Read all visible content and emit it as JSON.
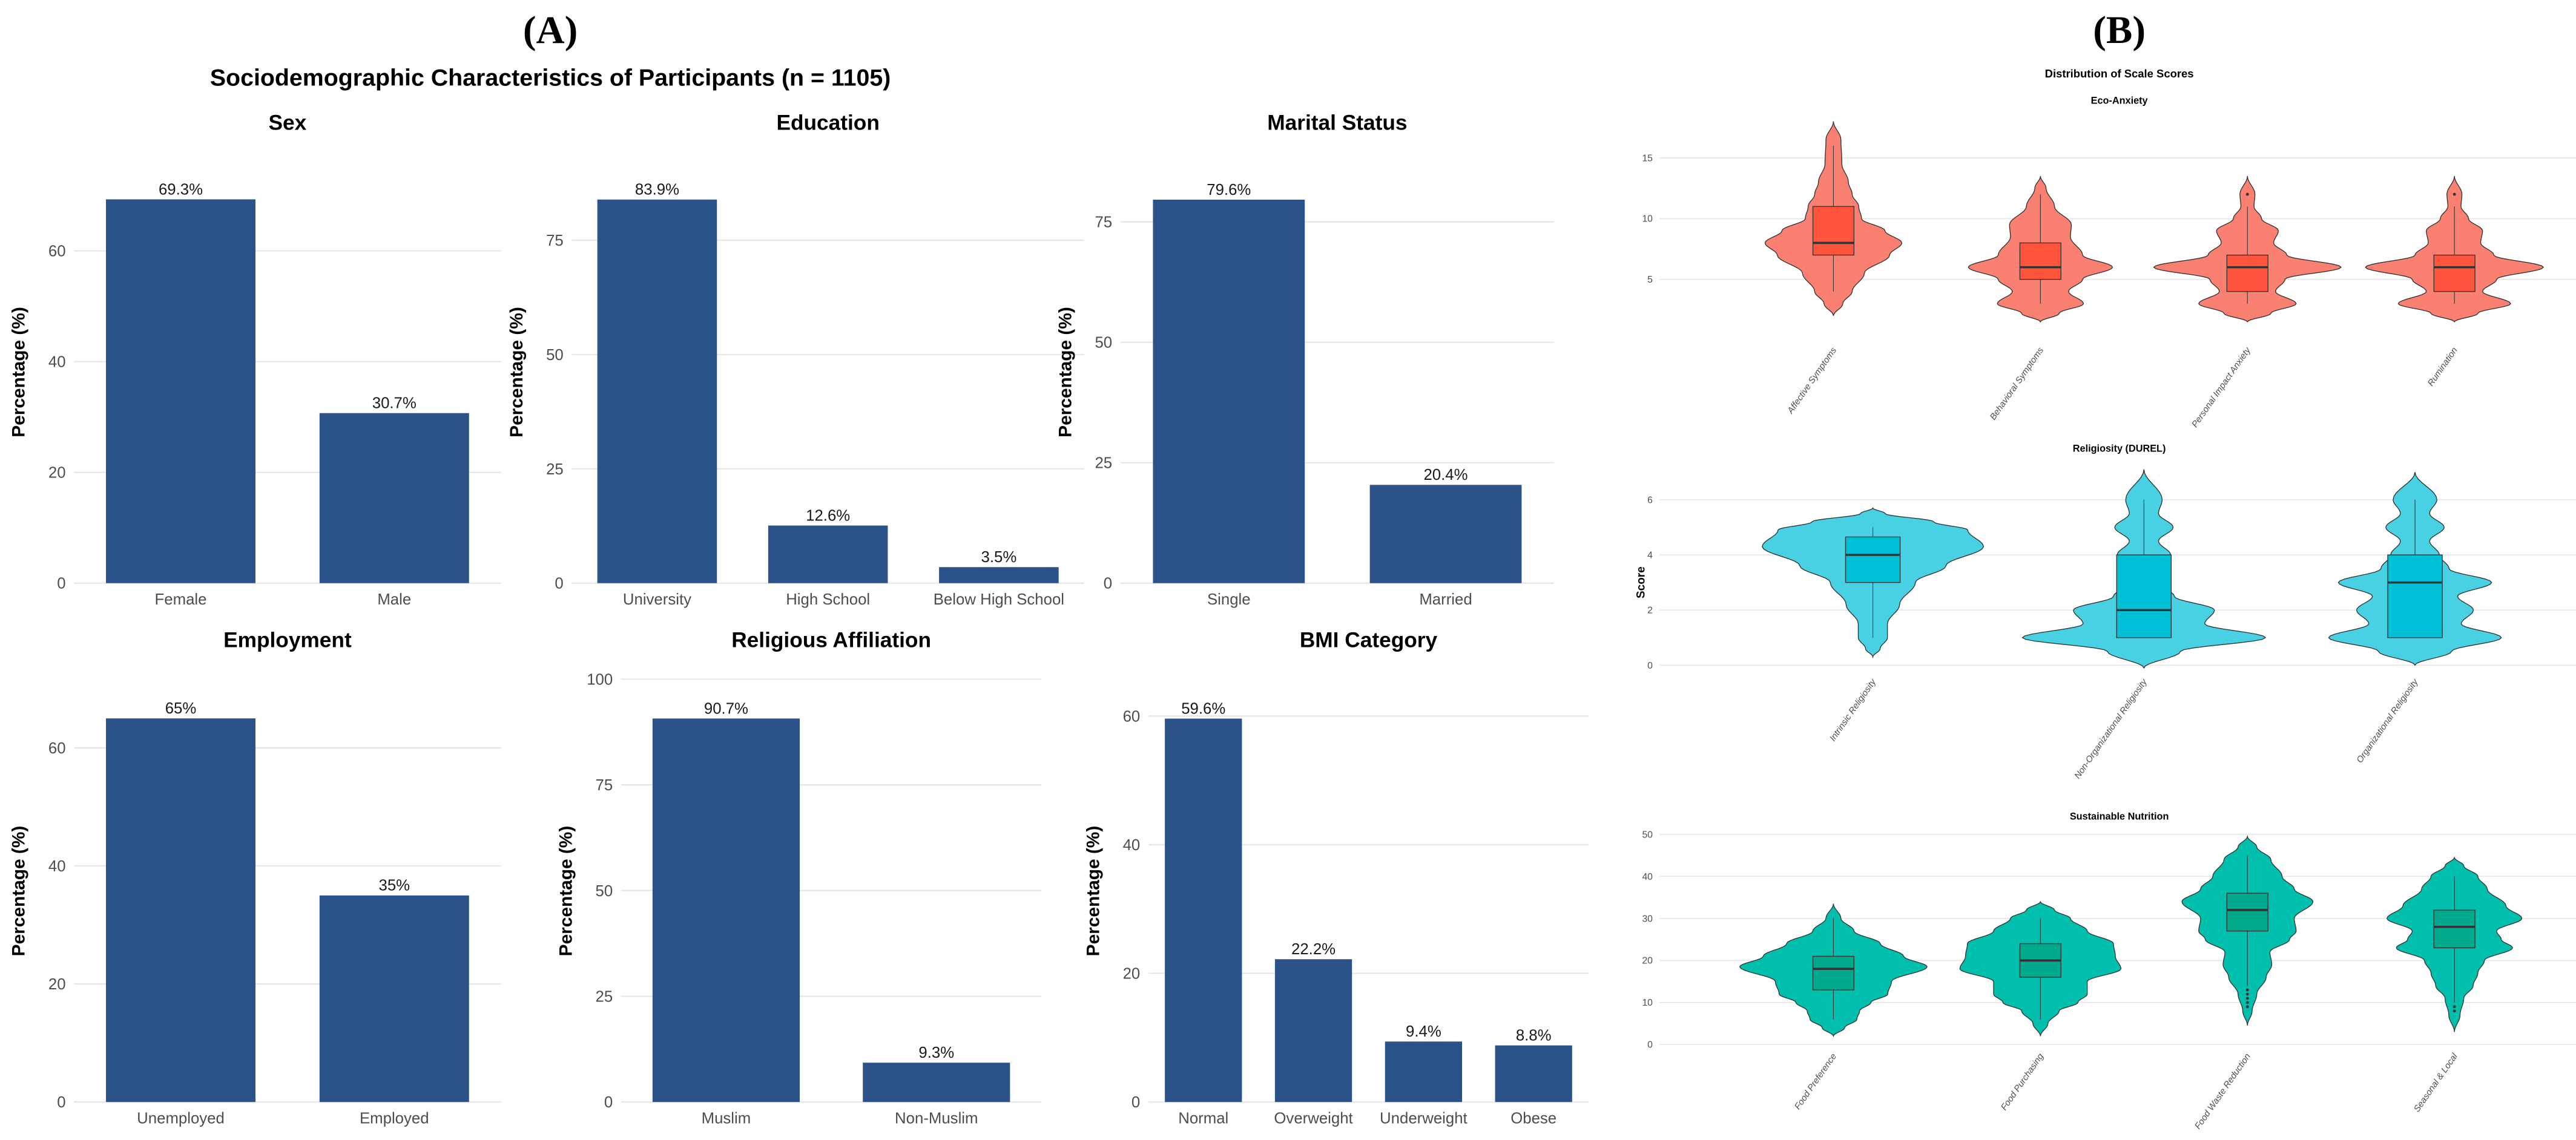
{
  "panel_a_letter": "(A)",
  "panel_b_letter": "(B)",
  "colors": {
    "bar": "#2b5289",
    "eco_violin": "#fa8072",
    "eco_box": "#ff553c",
    "rel_violin": "#48d1e2",
    "rel_box": "#00c0d8",
    "nut_violin": "#00bfad",
    "nut_box": "#00a88c",
    "grid": "#e6e6e6"
  },
  "chart_data": [
    {
      "type": "bar",
      "title": "Sociodemographic Characteristics of Participants (n = 1105)",
      "ylabel": "Percentage (%)",
      "panels": [
        {
          "title": "Sex",
          "categories": [
            "Female",
            "Male"
          ],
          "values": [
            69.3,
            30.7
          ],
          "labels": [
            "69.3%",
            "30.7%"
          ],
          "yticks": [
            0,
            20,
            40,
            60
          ],
          "ylim": [
            0,
            76.2
          ]
        },
        {
          "title": "Education",
          "categories": [
            "University",
            "High School",
            "Below High School"
          ],
          "values": [
            83.9,
            12.6,
            3.5
          ],
          "labels": [
            "83.9%",
            "12.6%",
            "3.5%"
          ],
          "yticks": [
            0,
            25,
            50,
            75
          ],
          "ylim": [
            0,
            92.3
          ]
        },
        {
          "title": "Marital Status",
          "categories": [
            "Single",
            "Married"
          ],
          "values": [
            79.6,
            20.4
          ],
          "labels": [
            "79.6%",
            "20.4%"
          ],
          "yticks": [
            0,
            25,
            50,
            75
          ],
          "ylim": [
            0,
            87.6
          ]
        },
        {
          "title": "Employment",
          "categories": [
            "Unemployed",
            "Employed"
          ],
          "values": [
            65,
            35
          ],
          "labels": [
            "65%",
            "35%"
          ],
          "yticks": [
            0,
            20,
            40,
            60
          ],
          "ylim": [
            0,
            71.5
          ]
        },
        {
          "title": "Religious Affiliation",
          "categories": [
            "Muslim",
            "Non-Muslim"
          ],
          "values": [
            90.7,
            9.3
          ],
          "labels": [
            "90.7%",
            "9.3%"
          ],
          "yticks": [
            0,
            25,
            50,
            75,
            100
          ],
          "ylim": [
            0,
            99.8
          ]
        },
        {
          "title": "BMI Category",
          "categories": [
            "Normal",
            "Overweight",
            "Underweight",
            "Obese"
          ],
          "values": [
            59.6,
            22.2,
            9.4,
            8.8
          ],
          "labels": [
            "59.6%",
            "22.2%",
            "9.4%",
            "8.8%"
          ],
          "yticks": [
            0,
            20,
            40,
            60
          ],
          "ylim": [
            0,
            65.6
          ]
        }
      ]
    },
    {
      "type": "violin",
      "title": "Distribution of Scale Scores",
      "ylabel": "Score",
      "panels": [
        {
          "title": "Eco-Anxiety",
          "yticks": [
            5,
            10,
            15
          ],
          "colorKey": "eco",
          "groups": [
            {
              "name": "Affective Symptoms",
              "box": {
                "lower": 4,
                "q1": 7,
                "median": 8,
                "q3": 11,
                "upper": 16
              },
              "outliers": [],
              "density": [
                [
                  2,
                  0
                ],
                [
                  3,
                  0.1
                ],
                [
                  4,
                  0.2
                ],
                [
                  5.5,
                  0.33
                ],
                [
                  7,
                  0.6
                ],
                [
                  8,
                  0.73
                ],
                [
                  9,
                  0.55
                ],
                [
                  10,
                  0.3
                ],
                [
                  11,
                  0.27
                ],
                [
                  12,
                  0.2
                ],
                [
                  13,
                  0.16
                ],
                [
                  14.5,
                  0.09
                ],
                [
                  16.5,
                  0.08
                ],
                [
                  18,
                  0
                ]
              ]
            },
            {
              "name": "Behavioral Symptoms",
              "box": {
                "lower": 3,
                "q1": 5,
                "median": 6,
                "q3": 8,
                "upper": 12
              },
              "outliers": [],
              "density": [
                [
                  1.5,
                  0
                ],
                [
                  2.2,
                  0.2
                ],
                [
                  3,
                  0.46
                ],
                [
                  4,
                  0.3
                ],
                [
                  5,
                  0.45
                ],
                [
                  6,
                  0.77
                ],
                [
                  7,
                  0.45
                ],
                [
                  8.5,
                  0.32
                ],
                [
                  9.5,
                  0.33
                ],
                [
                  11,
                  0.15
                ],
                [
                  12.5,
                  0.06
                ],
                [
                  13.5,
                  0
                ]
              ]
            },
            {
              "name": "Personal Impact Anxiety",
              "box": {
                "lower": 3,
                "q1": 4,
                "median": 6,
                "q3": 7,
                "upper": 11
              },
              "outliers": [
                12
              ],
              "density": [
                [
                  1.5,
                  0
                ],
                [
                  2.2,
                  0.25
                ],
                [
                  3,
                  0.52
                ],
                [
                  4,
                  0.3
                ],
                [
                  5,
                  0.4
                ],
                [
                  6,
                  1
                ],
                [
                  7,
                  0.42
                ],
                [
                  8,
                  0.28
                ],
                [
                  9,
                  0.33
                ],
                [
                  10,
                  0.15
                ],
                [
                  11,
                  0.07
                ],
                [
                  12,
                  0.08
                ],
                [
                  13.5,
                  0
                ]
              ]
            },
            {
              "name": "Rumination",
              "box": {
                "lower": 3,
                "q1": 4,
                "median": 6,
                "q3": 7,
                "upper": 11
              },
              "outliers": [
                12
              ],
              "density": [
                [
                  1.5,
                  0
                ],
                [
                  2.2,
                  0.25
                ],
                [
                  3,
                  0.6
                ],
                [
                  4,
                  0.3
                ],
                [
                  5,
                  0.45
                ],
                [
                  6,
                  0.95
                ],
                [
                  7,
                  0.42
                ],
                [
                  8,
                  0.28
                ],
                [
                  9,
                  0.3
                ],
                [
                  10,
                  0.15
                ],
                [
                  11,
                  0.07
                ],
                [
                  12,
                  0.08
                ],
                [
                  13.5,
                  0
                ]
              ]
            }
          ]
        },
        {
          "title": "Religiosity (DUREL)",
          "yticks": [
            0,
            2,
            4,
            6
          ],
          "colorKey": "rel",
          "groups": [
            {
              "name": "Intrinsic Religiosity",
              "box": {
                "lower": 1,
                "q1": 3,
                "median": 4,
                "q3": 4.65,
                "upper": 5
              },
              "outliers": [],
              "density": [
                [
                  0.3,
                  0
                ],
                [
                  0.6,
                  0.06
                ],
                [
                  1,
                  0.12
                ],
                [
                  1.5,
                  0.12
                ],
                [
                  2.2,
                  0.22
                ],
                [
                  3,
                  0.35
                ],
                [
                  3.6,
                  0.6
                ],
                [
                  4.3,
                  0.91
                ],
                [
                  4.9,
                  0.78
                ],
                [
                  5.2,
                  0.5
                ],
                [
                  5.5,
                  0.1
                ],
                [
                  5.7,
                  0
                ]
              ]
            },
            {
              "name": "Non-Organizational Religiosity",
              "box": {
                "lower": 1,
                "q1": 1,
                "median": 2,
                "q3": 4,
                "upper": 6
              },
              "outliers": [],
              "density": [
                [
                  -0.1,
                  0
                ],
                [
                  0.5,
                  0.3
                ],
                [
                  1,
                  1
                ],
                [
                  1.5,
                  0.5
                ],
                [
                  2,
                  0.58
                ],
                [
                  2.5,
                  0.25
                ],
                [
                  3,
                  0.1
                ],
                [
                  3.5,
                  0.1
                ],
                [
                  4,
                  0.22
                ],
                [
                  4.5,
                  0.12
                ],
                [
                  5,
                  0.24
                ],
                [
                  5.5,
                  0.12
                ],
                [
                  6,
                  0.15
                ],
                [
                  7.1,
                  0
                ]
              ]
            },
            {
              "name": "Organizational Religiosity",
              "box": {
                "lower": 1,
                "q1": 1,
                "median": 3,
                "q3": 4,
                "upper": 6
              },
              "outliers": [],
              "density": [
                [
                  0,
                  0
                ],
                [
                  0.5,
                  0.3
                ],
                [
                  1,
                  0.71
                ],
                [
                  1.5,
                  0.38
                ],
                [
                  2,
                  0.48
                ],
                [
                  2.5,
                  0.35
                ],
                [
                  3,
                  0.63
                ],
                [
                  3.5,
                  0.28
                ],
                [
                  4,
                  0.2
                ],
                [
                  4.5,
                  0.12
                ],
                [
                  5,
                  0.24
                ],
                [
                  5.5,
                  0.12
                ],
                [
                  6,
                  0.18
                ],
                [
                  7,
                  0
                ]
              ]
            }
          ]
        },
        {
          "title": "Sustainable Nutrition",
          "yticks": [
            0,
            10,
            20,
            30,
            40,
            50
          ],
          "colorKey": "nut",
          "groups": [
            {
              "name": "Food Preference",
              "box": {
                "lower": 6,
                "q1": 13,
                "median": 18,
                "q3": 21,
                "upper": 30
              },
              "outliers": [],
              "density": [
                [
                  2,
                  0
                ],
                [
                  4,
                  0.12
                ],
                [
                  6,
                  0.25
                ],
                [
                  8,
                  0.28
                ],
                [
                  10,
                  0.4
                ],
                [
                  12,
                  0.58
                ],
                [
                  15,
                  0.62
                ],
                [
                  18.5,
                  1
                ],
                [
                  21,
                  0.75
                ],
                [
                  24,
                  0.5
                ],
                [
                  27,
                  0.22
                ],
                [
                  30,
                  0.08
                ],
                [
                  33.5,
                  0
                ]
              ]
            },
            {
              "name": "Food Purchasing",
              "box": {
                "lower": 6,
                "q1": 16,
                "median": 20,
                "q3": 24,
                "upper": 30
              },
              "outliers": [],
              "density": [
                [
                  2,
                  0
                ],
                [
                  5,
                  0.08
                ],
                [
                  8,
                  0.2
                ],
                [
                  10,
                  0.4
                ],
                [
                  12,
                  0.5
                ],
                [
                  15,
                  0.5
                ],
                [
                  18,
                  0.86
                ],
                [
                  21,
                  0.8
                ],
                [
                  24,
                  0.78
                ],
                [
                  27,
                  0.5
                ],
                [
                  30,
                  0.32
                ],
                [
                  32,
                  0.15
                ],
                [
                  34,
                  0
                ]
              ]
            },
            {
              "name": "Food Waste Reduction",
              "box": {
                "lower": 14,
                "q1": 27,
                "median": 32,
                "q3": 36,
                "upper": 45
              },
              "outliers": [
                9,
                10,
                11,
                12,
                13
              ],
              "density": [
                [
                  4.5,
                  0
                ],
                [
                  8,
                  0.05
                ],
                [
                  12,
                  0.1
                ],
                [
                  16,
                  0.2
                ],
                [
                  19,
                  0.26
                ],
                [
                  22,
                  0.24
                ],
                [
                  25,
                  0.45
                ],
                [
                  27,
                  0.52
                ],
                [
                  30,
                  0.5
                ],
                [
                  34,
                  0.7
                ],
                [
                  37,
                  0.5
                ],
                [
                  40,
                  0.37
                ],
                [
                  44,
                  0.25
                ],
                [
                  47,
                  0.1
                ],
                [
                  49.5,
                  0
                ]
              ]
            },
            {
              "name": "Seasonal & Local",
              "box": {
                "lower": 10,
                "q1": 23,
                "median": 28,
                "q3": 32,
                "upper": 40
              },
              "outliers": [
                8,
                9
              ],
              "density": [
                [
                  3,
                  0
                ],
                [
                  7,
                  0.06
                ],
                [
                  11,
                  0.1
                ],
                [
                  14,
                  0.2
                ],
                [
                  17,
                  0.25
                ],
                [
                  20,
                  0.32
                ],
                [
                  23,
                  0.62
                ],
                [
                  25,
                  0.5
                ],
                [
                  27,
                  0.45
                ],
                [
                  30,
                  0.72
                ],
                [
                  33,
                  0.55
                ],
                [
                  37,
                  0.35
                ],
                [
                  40,
                  0.25
                ],
                [
                  42.5,
                  0.1
                ],
                [
                  44.5,
                  0
                ]
              ]
            }
          ]
        }
      ]
    }
  ]
}
